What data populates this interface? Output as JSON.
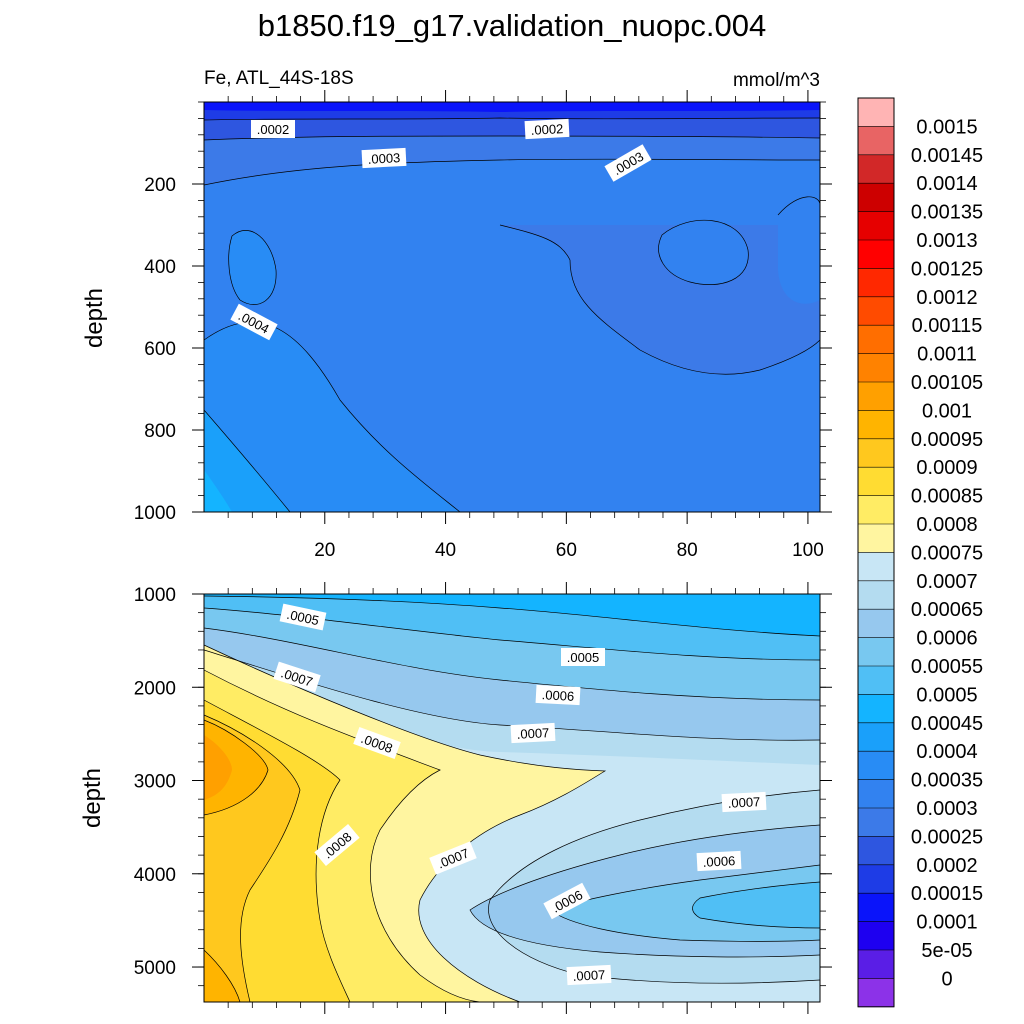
{
  "chart_data": {
    "type": "heatmap",
    "title": "b1850.f19_g17.validation_nuopc.004",
    "variable": "Fe",
    "region": "ATL_44S-18S",
    "units": "mmol/m^3",
    "colorbar": {
      "labels": [
        "0.0015",
        "0.00145",
        "0.0014",
        "0.00135",
        "0.0013",
        "0.00125",
        "0.0012",
        "0.00115",
        "0.0011",
        "0.00105",
        "0.001",
        "0.00095",
        "0.0009",
        "0.00085",
        "0.0008",
        "0.00075",
        "0.0007",
        "0.00065",
        "0.0006",
        "0.00055",
        "0.0005",
        "0.00045",
        "0.0004",
        "0.00035",
        "0.0003",
        "0.00025",
        "0.0002",
        "0.00015",
        "0.0001",
        "5e-05",
        "0"
      ],
      "colors": [
        "#ffb4b4",
        "#e86464",
        "#d22828",
        "#cd0000",
        "#e60000",
        "#ff0000",
        "#ff2800",
        "#ff4b00",
        "#ff6e00",
        "#ff8200",
        "#ffa000",
        "#ffb400",
        "#ffc81e",
        "#ffdc32",
        "#ffec64",
        "#fff5a0",
        "#c8e6f5",
        "#b4dcf0",
        "#96c8ee",
        "#78c8f0",
        "#50bff5",
        "#14b4ff",
        "#1aa0fa",
        "#288cf5",
        "#3282f0",
        "#3c7ae8",
        "#2e56e0",
        "#1e3ce6",
        "#0a14fa",
        "#1e00f0",
        "#5a1ee6",
        "#8c32e8"
      ]
    },
    "panels": [
      {
        "name": "upper",
        "x_ticks": [
          "20",
          "40",
          "60",
          "80",
          "100"
        ],
        "y_ticks": [
          "200",
          "400",
          "600",
          "800",
          "1000"
        ],
        "ylabel": "depth",
        "ylim": [
          0,
          1000
        ],
        "xlim": [
          0,
          102
        ],
        "contour_labels": [
          ".0002",
          ".0002",
          ".0003",
          ".0003",
          ".0004"
        ]
      },
      {
        "name": "lower",
        "y_ticks": [
          "1000",
          "2000",
          "3000",
          "4000",
          "5000"
        ],
        "ylabel": "depth",
        "ylim": [
          1000,
          5375
        ],
        "xlim": [
          0,
          102
        ],
        "contour_labels": [
          ".0005",
          ".0005",
          ".0007",
          ".0006",
          ".0008",
          ".0007",
          ".0007",
          ".0008",
          ".0007",
          ".0006",
          ".0006",
          ".0007"
        ]
      }
    ]
  }
}
